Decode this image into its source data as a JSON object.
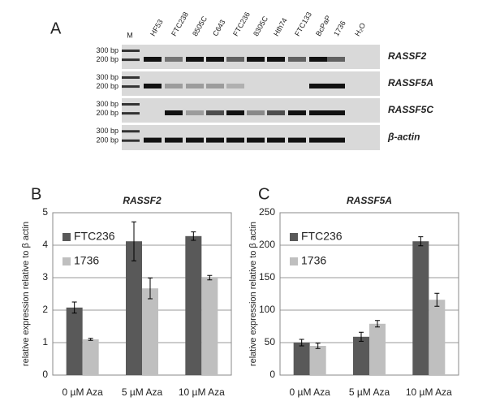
{
  "gel": {
    "panel_label": "A",
    "lanes": [
      "M",
      "HF53",
      "FTC238",
      "8505C",
      "C643",
      "FTC236",
      "8305C",
      "Hth74",
      "FTC133",
      "BcPaP",
      "1736",
      "H₂O"
    ],
    "size_markers": [
      "300 bp",
      "200 bp"
    ],
    "genes": [
      "RASSF2",
      "RASSF5A",
      "RASSF5C",
      "β-actin"
    ]
  },
  "chart_data": [
    {
      "type": "bar",
      "panel_label": "B",
      "title": "RASSF2",
      "y_label": "relative expression relative to β actin",
      "categories": [
        "0 µM Aza",
        "5 µM Aza",
        "10 µM Aza"
      ],
      "series": [
        {
          "name": "FTC236",
          "color": "#595959",
          "values": [
            2.08,
            4.12,
            4.28
          ],
          "errors": [
            0.17,
            0.6,
            0.13
          ]
        },
        {
          "name": "1736",
          "color": "#bfbfbf",
          "values": [
            1.1,
            2.67,
            3.0
          ],
          "errors": [
            0.03,
            0.32,
            0.07
          ]
        }
      ],
      "ylim": [
        0,
        5
      ],
      "yticks": [
        0,
        1,
        2,
        3,
        4,
        5
      ],
      "grid": true,
      "legend": "upper left"
    },
    {
      "type": "bar",
      "panel_label": "C",
      "title": "RASSF5A",
      "y_label": "relative expression relative to β actin",
      "categories": [
        "0 µM Aza",
        "5 µM Aza",
        "10 µM Aza"
      ],
      "series": [
        {
          "name": "FTC236",
          "color": "#595959",
          "values": [
            50,
            59,
            206
          ],
          "errors": [
            5,
            7,
            7
          ]
        },
        {
          "name": "1736",
          "color": "#bfbfbf",
          "values": [
            45,
            79,
            116
          ],
          "errors": [
            4,
            5,
            10
          ]
        }
      ],
      "ylim": [
        0,
        250
      ],
      "yticks": [
        0,
        50,
        100,
        150,
        200,
        250
      ],
      "grid": true,
      "legend": "upper left"
    }
  ]
}
